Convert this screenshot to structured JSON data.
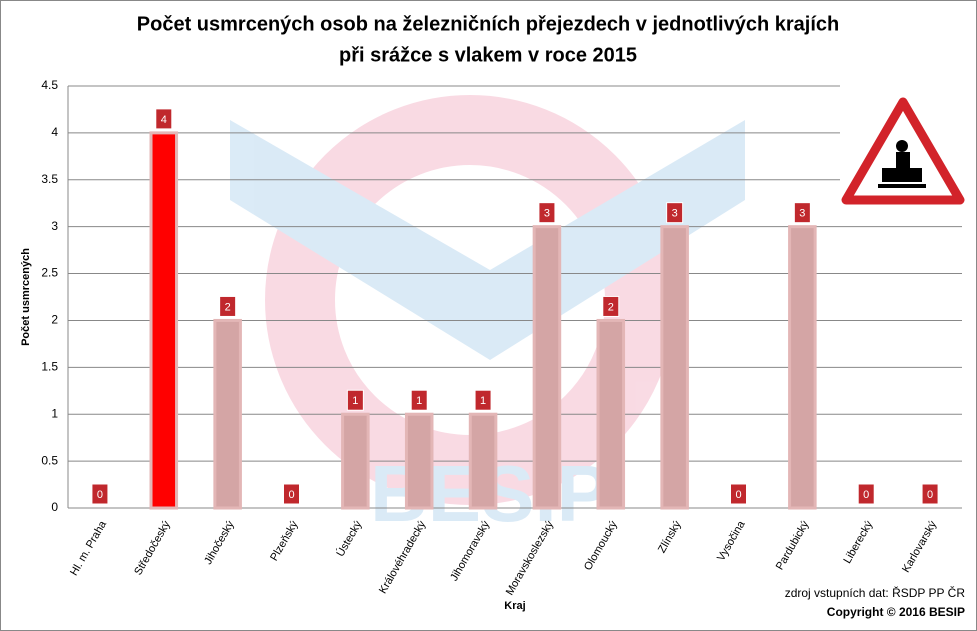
{
  "chart_data": {
    "type": "bar",
    "title": [
      "Počet usmrcených osob na železničních přejezdech v jednotlivých krajích",
      "při srážce s vlakem v roce 2015"
    ],
    "y_label": "Počet usmrcených",
    "x_label": "Kraj",
    "source": "zdroj vstupních dat: ŘSDP PP ČR",
    "copyright": "Copyright © 2016  BESIP",
    "categories": [
      "Hl. m. Praha",
      "Středočeský",
      "Jihočeský",
      "Plzeňský",
      "Ústecký",
      "Královéhradecký",
      "Jihomoravský",
      "Moravskoslezský",
      "Olomoucký",
      "Zlínský",
      "Vysočina",
      "Pardubický",
      "Liberecký",
      "Karlovarský"
    ],
    "values": [
      0,
      4,
      2,
      0,
      1,
      1,
      1,
      3,
      2,
      3,
      0,
      3,
      0,
      0
    ],
    "colors": [
      "#d4a5a5",
      "#ff0000",
      "#d4a5a5",
      "#d4a5a5",
      "#d4a5a5",
      "#d4a5a5",
      "#d4a5a5",
      "#d4a5a5",
      "#d4a5a5",
      "#d4a5a5",
      "#d4a5a5",
      "#d4a5a5",
      "#d4a5a5",
      "#d4a5a5"
    ],
    "label_color": "#c0282d",
    "ylim": [
      0,
      4.5
    ],
    "yticks": [
      0,
      0.5,
      1,
      1.5,
      2,
      2.5,
      3,
      3.5,
      4,
      4.5
    ],
    "grid": true
  }
}
